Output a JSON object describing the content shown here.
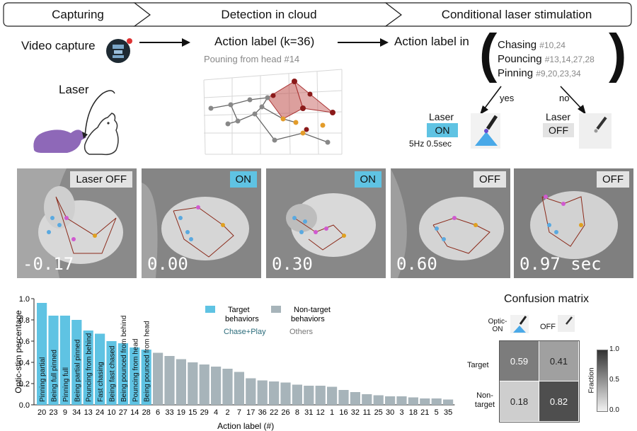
{
  "pipeline": {
    "stage1": "Capturing",
    "stage2": "Detection in cloud",
    "stage3": "Conditional laser stimulation"
  },
  "capture": {
    "video_label": "Video capture",
    "laser_label": "Laser"
  },
  "detection": {
    "action_label": "Action label (k=36)",
    "example": "Pouning from head #14"
  },
  "conditional": {
    "action_in": "Action label in",
    "groups": [
      {
        "name": "Chasing",
        "ids": "#10,24"
      },
      {
        "name": "Pouncing",
        "ids": "#13,14,27,28"
      },
      {
        "name": "Pinning",
        "ids": "#9,20,23,34"
      }
    ],
    "yes": "yes",
    "no": "no",
    "laser_word_on": "Laser",
    "on": "ON",
    "laser_word_off": "Laser",
    "off": "OFF",
    "freq": "5Hz 0.5sec"
  },
  "frames": [
    {
      "label": "Laser OFF",
      "state": "off",
      "time": "-0.17"
    },
    {
      "label": "ON",
      "state": "on",
      "time": "0.00"
    },
    {
      "label": "ON",
      "state": "on",
      "time": "0.30"
    },
    {
      "label": "OFF",
      "state": "off",
      "time": "0.60"
    },
    {
      "label": "OFF",
      "state": "off",
      "time": "0.97 sec"
    }
  ],
  "chart_data": {
    "type": "bar",
    "xlabel": "Action label (#)",
    "ylabel": "Optic-stim percentage",
    "ylim": [
      0,
      1.0
    ],
    "yticks": [
      "0.0",
      "0.2",
      "0.4",
      "0.6",
      "0.8",
      "1.0"
    ],
    "categories": [
      "20",
      "23",
      "9",
      "34",
      "13",
      "24",
      "10",
      "27",
      "14",
      "28",
      "6",
      "33",
      "19",
      "15",
      "29",
      "4",
      "2",
      "7",
      "17",
      "36",
      "22",
      "26",
      "8",
      "31",
      "12",
      "1",
      "16",
      "32",
      "11",
      "25",
      "30",
      "3",
      "18",
      "21",
      "5",
      "35"
    ],
    "values": [
      0.96,
      0.84,
      0.84,
      0.8,
      0.7,
      0.67,
      0.6,
      0.58,
      0.54,
      0.52,
      0.49,
      0.46,
      0.43,
      0.4,
      0.38,
      0.36,
      0.34,
      0.31,
      0.25,
      0.23,
      0.22,
      0.21,
      0.19,
      0.18,
      0.18,
      0.17,
      0.14,
      0.12,
      0.1,
      0.09,
      0.08,
      0.08,
      0.07,
      0.06,
      0.06,
      0.05
    ],
    "target_count": 10,
    "bar_names": [
      "Pinning partial",
      "Being full pinned",
      "Pinning full",
      "Being partial pinned",
      "Pouncing from behind",
      "Fast chasing",
      "Being fast chased",
      "Being pounced from behind",
      "Pouncing from head",
      "Being pounced from head"
    ],
    "legend": [
      {
        "name": "Target behaviors",
        "sub": "Chase+Play",
        "color": "#5fc3e3"
      },
      {
        "name": "Non-target behaviors",
        "sub": "Others",
        "color": "#a7b4ba"
      }
    ],
    "colors": {
      "target": "#5fc3e3",
      "nontarget": "#a7b4ba"
    }
  },
  "confusion": {
    "title": "Confusion matrix",
    "col_labels": [
      "Optic-ON",
      "OFF"
    ],
    "row_labels": [
      "Target",
      "Non-target"
    ],
    "values": [
      [
        0.59,
        0.41
      ],
      [
        0.18,
        0.82
      ]
    ],
    "display": [
      [
        "0.59",
        "0.41"
      ],
      [
        "0.18",
        "0.82"
      ]
    ],
    "colorbar_label": "Fraction",
    "colorbar_ticks": [
      "1.0",
      "0.5",
      "0.0"
    ]
  }
}
